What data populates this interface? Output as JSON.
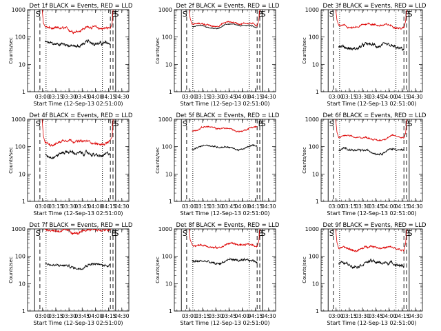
{
  "figure": {
    "xlabel": "Start Time (12-Sep-13 02:51:00)",
    "ylabel": "Counts/sec",
    "x_ticks": [
      "03:00",
      "03:15",
      "03:30",
      "03:45",
      "04:00",
      "04:15",
      "04:30"
    ],
    "y_ticks": [
      "1",
      "10",
      "100",
      "1000"
    ],
    "colors": {
      "events": "#000000",
      "lld": "#dd0000",
      "axes": "#000000",
      "background": "#ffffff"
    },
    "x_range_minutes_after_start": [
      -8,
      107
    ],
    "y_range_log10": [
      0,
      3
    ]
  },
  "chart_data": [
    {
      "type": "line",
      "title": "Det 1f BLACK = Events, RED = LLD",
      "y_scale": "log",
      "ylim": [
        1,
        1000
      ],
      "series": [
        {
          "name": "Events",
          "color": "#000000",
          "level": 55,
          "noise": 0.07,
          "rise_at_edges": false
        },
        {
          "name": "LLD",
          "color": "#dd0000",
          "level": 200,
          "noise": 0.05,
          "rise_at_edges": true
        }
      ],
      "markers": [
        {
          "label": "S",
          "x": "02:51",
          "style": "solid"
        },
        {
          "x": "02:57",
          "style": "dashed"
        },
        {
          "x": "03:04",
          "style": "dotted"
        },
        {
          "x": "04:08",
          "style": "dotted"
        },
        {
          "label": "E",
          "x": "04:17",
          "style": "dashed"
        },
        {
          "label": "S",
          "x": "04:20",
          "style": "dashed"
        },
        {
          "x": "04:23",
          "style": "solid"
        }
      ]
    },
    {
      "type": "line",
      "title": "Det 2f BLACK = Events, RED = LLD",
      "y_scale": "log",
      "ylim": [
        1,
        1000
      ],
      "series": [
        {
          "name": "Events",
          "color": "#000000",
          "level": 250,
          "noise": 0.02,
          "rise_at_edges": false
        },
        {
          "name": "LLD",
          "color": "#dd0000",
          "level": 300,
          "noise": 0.03,
          "rise_at_edges": true
        }
      ],
      "markers": [
        {
          "label": "S",
          "x": "02:51",
          "style": "solid"
        },
        {
          "x": "02:57",
          "style": "dashed"
        },
        {
          "x": "03:04",
          "style": "dotted"
        },
        {
          "x": "04:08",
          "style": "dotted"
        },
        {
          "label": "E",
          "x": "04:17",
          "style": "dashed"
        },
        {
          "label": "S",
          "x": "04:20",
          "style": "dashed"
        },
        {
          "x": "04:23",
          "style": "solid"
        }
      ]
    },
    {
      "type": "line",
      "title": "Det 3f BLACK = Events, RED = LLD",
      "y_scale": "log",
      "ylim": [
        1,
        1000
      ],
      "series": [
        {
          "name": "Events",
          "color": "#000000",
          "level": 45,
          "noise": 0.07,
          "rise_at_edges": false
        },
        {
          "name": "LLD",
          "color": "#dd0000",
          "level": 260,
          "noise": 0.04,
          "rise_at_edges": true
        }
      ],
      "markers": [
        {
          "label": "S",
          "x": "02:51",
          "style": "solid"
        },
        {
          "x": "02:57",
          "style": "dashed"
        },
        {
          "x": "03:04",
          "style": "dotted"
        },
        {
          "x": "04:08",
          "style": "dotted"
        },
        {
          "label": "E",
          "x": "04:17",
          "style": "dashed"
        },
        {
          "label": "S",
          "x": "04:20",
          "style": "dashed"
        },
        {
          "x": "04:23",
          "style": "solid"
        }
      ]
    },
    {
      "type": "line",
      "title": "Det 4f BLACK = Events, RED = LLD",
      "y_scale": "log",
      "ylim": [
        1,
        1000
      ],
      "series": [
        {
          "name": "Events",
          "color": "#000000",
          "level": 55,
          "noise": 0.07,
          "rise_at_edges": false
        },
        {
          "name": "LLD",
          "color": "#dd0000",
          "level": 150,
          "noise": 0.05,
          "rise_at_edges": true
        }
      ],
      "markers": [
        {
          "label": "S",
          "x": "02:51",
          "style": "solid"
        },
        {
          "x": "02:57",
          "style": "dashed"
        },
        {
          "x": "03:04",
          "style": "dotted"
        },
        {
          "x": "04:08",
          "style": "dotted"
        },
        {
          "label": "E",
          "x": "04:17",
          "style": "dashed"
        },
        {
          "label": "S",
          "x": "04:20",
          "style": "dashed"
        },
        {
          "x": "04:23",
          "style": "solid"
        }
      ]
    },
    {
      "type": "line",
      "title": "Det 5f BLACK = Events, RED = LLD",
      "y_scale": "log",
      "ylim": [
        1,
        1000
      ],
      "series": [
        {
          "name": "Events",
          "color": "#000000",
          "level": 95,
          "noise": 0.03,
          "rise_at_edges": false
        },
        {
          "name": "LLD",
          "color": "#dd0000",
          "level": 450,
          "noise": 0.03,
          "rise_at_edges": false
        }
      ],
      "markers": [
        {
          "label": "S",
          "x": "02:51",
          "style": "solid"
        },
        {
          "x": "02:57",
          "style": "dashed"
        },
        {
          "x": "03:04",
          "style": "dotted"
        },
        {
          "x": "04:08",
          "style": "dotted"
        },
        {
          "label": "E",
          "x": "04:17",
          "style": "dashed"
        },
        {
          "label": "S",
          "x": "04:20",
          "style": "dashed"
        },
        {
          "x": "04:23",
          "style": "solid"
        }
      ]
    },
    {
      "type": "line",
      "title": "Det 6f BLACK = Events, RED = LLD",
      "y_scale": "log",
      "ylim": [
        1,
        1000
      ],
      "series": [
        {
          "name": "Events",
          "color": "#000000",
          "level": 70,
          "noise": 0.04,
          "rise_at_edges": false
        },
        {
          "name": "LLD",
          "color": "#dd0000",
          "level": 210,
          "noise": 0.03,
          "rise_at_edges": true
        }
      ],
      "markers": [
        {
          "label": "S",
          "x": "02:51",
          "style": "solid"
        },
        {
          "x": "02:57",
          "style": "dashed"
        },
        {
          "x": "03:04",
          "style": "dotted"
        },
        {
          "x": "04:08",
          "style": "dotted"
        },
        {
          "label": "E",
          "x": "04:17",
          "style": "dashed"
        },
        {
          "label": "S",
          "x": "04:20",
          "style": "dashed"
        },
        {
          "x": "04:23",
          "style": "solid"
        }
      ]
    },
    {
      "type": "line",
      "title": "Det 7f BLACK = Events, RED = LLD",
      "y_scale": "log",
      "ylim": [
        1,
        1000
      ],
      "series": [
        {
          "name": "Events",
          "color": "#000000",
          "level": 45,
          "noise": 0.05,
          "rise_at_edges": false
        },
        {
          "name": "LLD",
          "color": "#dd0000",
          "level": 850,
          "noise": 0.05,
          "rise_at_edges": true
        }
      ],
      "markers": [
        {
          "label": "S",
          "x": "02:51",
          "style": "solid"
        },
        {
          "x": "02:57",
          "style": "dashed"
        },
        {
          "x": "03:04",
          "style": "dotted"
        },
        {
          "x": "04:08",
          "style": "dotted"
        },
        {
          "label": "E",
          "x": "04:17",
          "style": "dashed"
        },
        {
          "label": "S",
          "x": "04:20",
          "style": "dashed"
        },
        {
          "x": "04:23",
          "style": "solid"
        }
      ]
    },
    {
      "type": "line",
      "title": "Det 8f BLACK = Events, RED = LLD",
      "y_scale": "log",
      "ylim": [
        1,
        1000
      ],
      "series": [
        {
          "name": "Events",
          "color": "#000000",
          "level": 65,
          "noise": 0.05,
          "rise_at_edges": false
        },
        {
          "name": "LLD",
          "color": "#dd0000",
          "level": 250,
          "noise": 0.04,
          "rise_at_edges": true
        }
      ],
      "markers": [
        {
          "label": "S",
          "x": "02:51",
          "style": "solid"
        },
        {
          "x": "02:57",
          "style": "dashed"
        },
        {
          "x": "03:04",
          "style": "dotted"
        },
        {
          "x": "04:08",
          "style": "dotted"
        },
        {
          "label": "E",
          "x": "04:17",
          "style": "dashed"
        },
        {
          "label": "S",
          "x": "04:20",
          "style": "dashed"
        },
        {
          "x": "04:23",
          "style": "solid"
        }
      ]
    },
    {
      "type": "line",
      "title": "Det 9f BLACK = Events, RED = LLD",
      "y_scale": "log",
      "ylim": [
        1,
        1000
      ],
      "series": [
        {
          "name": "Events",
          "color": "#000000",
          "level": 55,
          "noise": 0.06,
          "rise_at_edges": false
        },
        {
          "name": "LLD",
          "color": "#dd0000",
          "level": 200,
          "noise": 0.04,
          "rise_at_edges": true
        }
      ],
      "markers": [
        {
          "label": "S",
          "x": "02:51",
          "style": "solid"
        },
        {
          "x": "02:57",
          "style": "dashed"
        },
        {
          "x": "03:04",
          "style": "dotted"
        },
        {
          "x": "04:08",
          "style": "dotted"
        },
        {
          "label": "E",
          "x": "04:17",
          "style": "dashed"
        },
        {
          "label": "S",
          "x": "04:20",
          "style": "dashed"
        },
        {
          "x": "04:23",
          "style": "solid"
        }
      ]
    }
  ]
}
